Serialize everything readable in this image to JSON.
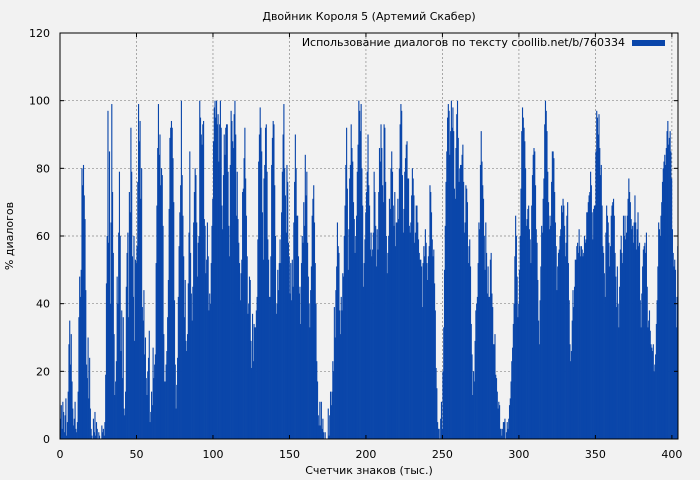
{
  "chart_data": {
    "type": "bar",
    "title": "Двойник Короля 5 (Артемий Скабер)",
    "xlabel": "Счетчик знаков (тыс.)",
    "ylabel": "% диалогов",
    "xlim": [
      0,
      404
    ],
    "ylim": [
      0,
      120
    ],
    "xticks": [
      0,
      50,
      100,
      150,
      200,
      250,
      300,
      350,
      400
    ],
    "yticks": [
      0,
      20,
      40,
      60,
      80,
      100,
      120
    ],
    "grid": true,
    "legend_position": "top-right",
    "series": [
      {
        "name": "Использование диалогов по тексту coollib.net/b/760334",
        "color": "#0a46aa",
        "x_step": 0.5,
        "values": [
          6,
          10,
          3,
          11,
          8,
          2,
          7,
          12,
          1,
          5,
          14,
          28,
          35,
          22,
          31,
          17,
          9,
          4,
          6,
          11,
          3,
          2,
          5,
          14,
          36,
          48,
          42,
          50,
          80,
          75,
          81,
          72,
          65,
          44,
          22,
          18,
          30,
          12,
          24,
          9,
          3,
          1,
          0,
          6,
          2,
          8,
          1,
          5,
          3,
          0,
          2,
          1,
          0,
          0,
          4,
          2,
          3,
          1,
          5,
          19,
          46,
          60,
          97,
          58,
          85,
          40,
          64,
          99,
          73,
          55,
          31,
          13,
          17,
          23,
          48,
          40,
          61,
          79,
          60,
          26,
          38,
          18,
          36,
          9,
          7,
          14,
          45,
          55,
          61,
          36,
          73,
          67,
          92,
          79,
          54,
          42,
          60,
          29,
          53,
          52,
          57,
          76,
          99,
          88,
          94,
          71,
          80,
          39,
          35,
          44,
          25,
          30,
          18,
          13,
          20,
          24,
          32,
          5,
          8,
          14,
          10,
          27,
          18,
          22,
          25,
          52,
          69,
          86,
          99,
          84,
          90,
          75,
          80,
          78,
          63,
          31,
          17,
          17,
          22,
          26,
          36,
          47,
          68,
          89,
          92,
          94,
          92,
          83,
          70,
          41,
          22,
          9,
          16,
          24,
          42,
          57,
          67,
          75,
          100,
          78,
          66,
          54,
          36,
          47,
          29,
          26,
          31,
          46,
          61,
          85,
          55,
          43,
          35,
          45,
          64,
          73,
          80,
          78,
          64,
          48,
          58,
          60,
          100,
          95,
          90,
          87,
          93,
          94,
          65,
          63,
          49,
          53,
          64,
          54,
          38,
          43,
          40,
          52,
          63,
          71,
          88,
          98,
          100,
          95,
          100,
          93,
          96,
          82,
          93,
          100,
          92,
          69,
          62,
          78,
          90,
          84,
          92,
          93,
          93,
          79,
          63,
          54,
          81,
          97,
          94,
          88,
          86,
          96,
          100,
          90,
          66,
          79,
          65,
          58,
          52,
          41,
          49,
          53,
          73,
          74,
          83,
          92,
          77,
          66,
          54,
          37,
          40,
          48,
          47,
          29,
          21,
          37,
          23,
          34,
          33,
          33,
          38,
          42,
          59,
          82,
          90,
          98,
          92,
          85,
          67,
          53,
          77,
          81,
          92,
          93,
          79,
          59,
          53,
          42,
          42,
          54,
          81,
          89,
          94,
          93,
          75,
          60,
          37,
          40,
          50,
          44,
          52,
          59,
          52,
          67,
          79,
          90,
          99,
          80,
          72,
          61,
          81,
          76,
          58,
          54,
          43,
          52,
          41,
          53,
          45,
          64,
          76,
          90,
          80,
          66,
          66,
          54,
          43,
          45,
          34,
          52,
          60,
          58,
          70,
          63,
          84,
          72,
          79,
          58,
          48,
          40,
          33,
          44,
          51,
          66,
          71,
          75,
          64,
          52,
          40,
          23,
          17,
          7,
          4,
          11,
          4,
          11,
          3,
          6,
          2,
          0,
          2,
          0,
          0,
          0,
          9,
          1,
          7,
          14,
          10,
          14,
          23,
          20,
          39,
          30,
          44,
          51,
          64,
          57,
          55,
          38,
          31,
          42,
          38,
          49,
          48,
          60,
          69,
          81,
          92,
          74,
          50,
          62,
          77,
          81,
          93,
          86,
          82,
          70,
          65,
          55,
          60,
          66,
          79,
          87,
          100,
          97,
          91,
          99,
          80,
          69,
          45,
          52,
          59,
          67,
          73,
          79,
          90,
          75,
          69,
          56,
          61,
          54,
          56,
          61,
          79,
          73,
          63,
          51,
          62,
          56,
          73,
          86,
          82,
          93,
          86,
          75,
          70,
          93,
          92,
          76,
          60,
          49,
          55,
          60,
          71,
          68,
          80,
          85,
          79,
          69,
          63,
          73,
          57,
          64,
          64,
          71,
          65,
          80,
          93,
          99,
          97,
          78,
          61,
          68,
          79,
          83,
          87,
          88,
          77,
          77,
          63,
          61,
          64,
          72,
          80,
          77,
          72,
          58,
          61,
          69,
          69,
          64,
          59,
          55,
          53,
          53,
          51,
          39,
          52,
          57,
          54,
          62,
          58,
          52,
          47,
          54,
          57,
          75,
          73,
          67,
          59,
          54,
          56,
          46,
          38,
          21,
          15,
          5,
          3,
          3,
          0,
          6,
          11,
          3,
          20,
          33,
          50,
          63,
          76,
          85,
          95,
          99,
          97,
          84,
          91,
          100,
          92,
          98,
          91,
          74,
          71,
          86,
          96,
          100,
          89,
          76,
          80,
          81,
          81,
          84,
          87,
          76,
          61,
          64,
          75,
          74,
          70,
          52,
          57,
          59,
          51,
          34,
          25,
          13,
          20,
          17,
          29,
          38,
          40,
          42,
          52,
          64,
          62,
          81,
          91,
          82,
          75,
          71,
          60,
          50,
          64,
          55,
          43,
          51,
          42,
          42,
          53,
          55,
          43,
          39,
          28,
          28,
          31,
          19,
          18,
          14,
          9,
          11,
          10,
          3,
          3,
          1,
          3,
          5,
          5,
          6,
          0,
          2,
          5,
          3,
          6,
          10,
          12,
          17,
          23,
          27,
          34,
          40,
          54,
          66,
          60,
          48,
          36,
          40,
          50,
          60,
          74,
          91,
          98,
          95,
          92,
          88,
          80,
          63,
          65,
          68,
          69,
          62,
          59,
          52,
          69,
          78,
          84,
          86,
          85,
          75,
          62,
          58,
          47,
          35,
          28,
          41,
          51,
          63,
          61,
          71,
          77,
          93,
          100,
          97,
          91,
          79,
          70,
          62,
          66,
          63,
          76,
          85,
          85,
          83,
          73,
          64,
          57,
          44,
          51,
          55,
          56,
          60,
          62,
          69,
          67,
          71,
          69,
          63,
          54,
          58,
          66,
          70,
          52,
          41,
          28,
          23,
          26,
          35,
          44,
          39,
          45,
          53,
          53,
          57,
          58,
          55,
          62,
          57,
          54,
          57,
          56,
          54,
          55,
          60,
          58,
          59,
          67,
          67,
          70,
          72,
          73,
          79,
          75,
          67,
          59,
          68,
          69,
          69,
          85,
          97,
          95,
          90,
          96,
          86,
          78,
          81,
          69,
          57,
          55,
          49,
          42,
          61,
          69,
          66,
          64,
          58,
          51,
          57,
          66,
          69,
          70,
          71,
          66,
          55,
          48,
          39,
          51,
          40,
          33,
          45,
          56,
          60,
          55,
          52,
          66,
          60,
          66,
          59,
          61,
          66,
          71,
          77,
          73,
          70,
          65,
          62,
          63,
          58,
          64,
          72,
          64,
          56,
          62,
          67,
          57,
          58,
          41,
          33,
          43,
          51,
          56,
          57,
          58,
          55,
          61,
          45,
          33,
          35,
          38,
          32,
          28,
          27,
          26,
          28,
          20,
          22,
          25,
          34,
          41,
          51,
          64,
          62,
          60,
          66,
          70,
          76,
          80,
          82,
          84,
          81,
          86,
          91,
          94,
          87,
          89,
          91,
          85,
          77,
          62,
          55,
          51,
          53,
          50,
          33,
          42,
          57,
          52,
          60,
          56,
          49,
          21,
          8,
          5,
          3,
          10
        ]
      }
    ]
  }
}
